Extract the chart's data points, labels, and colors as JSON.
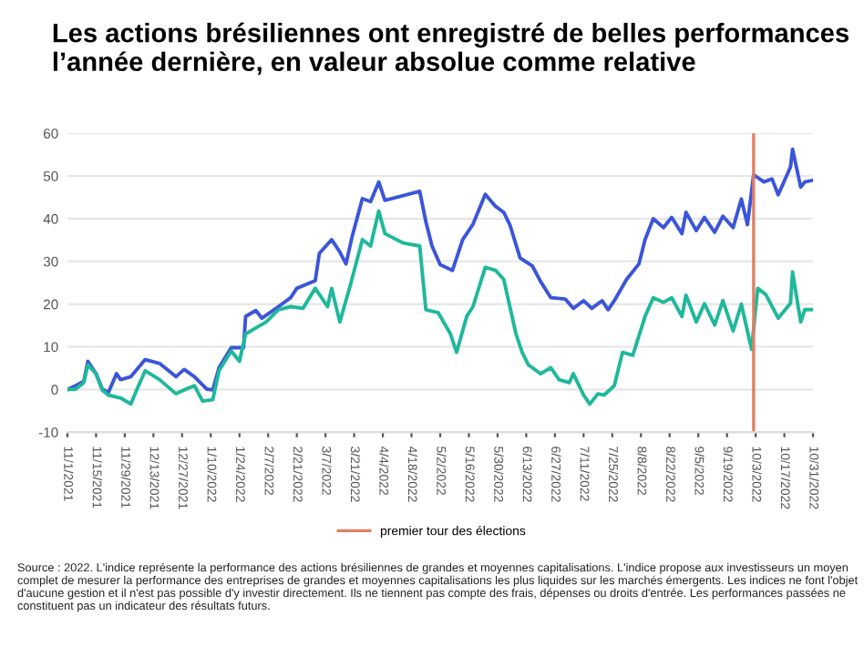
{
  "chart_data": {
    "type": "line",
    "title": "Les actions brésiliennes ont enregistré de belles performances l’année dernière, en valeur absolue comme relative",
    "series": [
      {
        "color": "#3b55d9",
        "x": [
          "2021-11-01",
          "2021-11-05",
          "2021-11-09",
          "2021-11-11",
          "2021-11-15",
          "2021-11-18",
          "2021-11-21",
          "2021-11-25",
          "2021-11-27",
          "2021-12-02",
          "2021-12-09",
          "2021-12-16",
          "2021-12-24",
          "2021-12-28",
          "2022-01-02",
          "2022-01-08",
          "2022-01-11",
          "2022-01-14",
          "2022-01-20",
          "2022-01-26",
          "2022-01-27",
          "2022-02-01",
          "2022-02-04",
          "2022-02-12",
          "2022-02-18",
          "2022-02-21",
          "2022-03-02",
          "2022-03-04",
          "2022-03-10",
          "2022-03-14",
          "2022-03-17",
          "2022-03-20",
          "2022-03-25",
          "2022-03-29",
          "2022-04-02",
          "2022-04-05",
          "2022-04-14",
          "2022-04-22",
          "2022-04-25",
          "2022-04-28",
          "2022-05-02",
          "2022-05-08",
          "2022-05-13",
          "2022-05-18",
          "2022-05-24",
          "2022-05-29",
          "2022-06-02",
          "2022-06-05",
          "2022-06-10",
          "2022-06-16",
          "2022-06-20",
          "2022-06-25",
          "2022-07-02",
          "2022-07-06",
          "2022-07-11",
          "2022-07-15",
          "2022-07-20",
          "2022-07-23",
          "2022-07-26",
          "2022-08-01",
          "2022-08-07",
          "2022-08-10",
          "2022-08-14",
          "2022-08-19",
          "2022-08-23",
          "2022-08-28",
          "2022-08-30",
          "2022-09-04",
          "2022-09-08",
          "2022-09-13",
          "2022-09-17",
          "2022-09-22",
          "2022-09-26",
          "2022-09-29",
          "2022-10-02",
          "2022-10-07",
          "2022-10-11",
          "2022-10-14",
          "2022-10-20",
          "2022-10-21",
          "2022-10-25",
          "2022-10-27",
          "2022-10-31"
        ],
        "values": [
          0,
          0.9,
          1.9,
          6.6,
          3.7,
          0.1,
          -0.7,
          3.7,
          2.3,
          3.0,
          7.0,
          6.1,
          3.0,
          4.7,
          3.0,
          0.1,
          -0.1,
          5.1,
          9.8,
          9.8,
          17.1,
          18.5,
          16.7,
          19.4,
          21.5,
          23.7,
          25.5,
          31.9,
          35.1,
          32.2,
          29.4,
          35.8,
          44.7,
          44.0,
          48.6,
          44.3,
          45.4,
          46.4,
          39.3,
          33.6,
          29.2,
          27.9,
          35.1,
          38.7,
          45.7,
          42.9,
          41.5,
          38.6,
          30.8,
          28.9,
          25.3,
          21.5,
          21.2,
          19.0,
          20.8,
          19.0,
          20.8,
          18.7,
          20.8,
          25.8,
          29.4,
          35.1,
          40.0,
          37.9,
          40.3,
          36.5,
          41.5,
          37.2,
          40.3,
          36.8,
          40.6,
          37.9,
          44.6,
          38.6,
          50.3,
          48.6,
          49.3,
          45.6,
          52.1,
          56.3,
          47.4,
          48.6,
          49.0
        ]
      },
      {
        "color": "#1fb89b",
        "x": [
          "2021-11-01",
          "2021-11-05",
          "2021-11-09",
          "2021-11-11",
          "2021-11-15",
          "2021-11-18",
          "2021-11-21",
          "2021-11-27",
          "2021-12-02",
          "2021-12-05",
          "2021-12-09",
          "2021-12-16",
          "2021-12-24",
          "2021-12-28",
          "2022-01-02",
          "2022-01-06",
          "2022-01-11",
          "2022-01-14",
          "2022-01-20",
          "2022-01-24",
          "2022-01-27",
          "2022-02-01",
          "2022-02-06",
          "2022-02-12",
          "2022-02-18",
          "2022-02-24",
          "2022-03-02",
          "2022-03-08",
          "2022-03-10",
          "2022-03-14",
          "2022-03-19",
          "2022-03-25",
          "2022-03-29",
          "2022-04-02",
          "2022-04-05",
          "2022-04-14",
          "2022-04-22",
          "2022-04-25",
          "2022-05-01",
          "2022-05-07",
          "2022-05-10",
          "2022-05-15",
          "2022-05-18",
          "2022-05-24",
          "2022-05-29",
          "2022-06-02",
          "2022-06-08",
          "2022-06-11",
          "2022-06-14",
          "2022-06-20",
          "2022-06-25",
          "2022-06-29",
          "2022-07-04",
          "2022-07-06",
          "2022-07-11",
          "2022-07-14",
          "2022-07-18",
          "2022-07-21",
          "2022-07-26",
          "2022-07-30",
          "2022-08-04",
          "2022-08-10",
          "2022-08-14",
          "2022-08-19",
          "2022-08-23",
          "2022-08-28",
          "2022-08-30",
          "2022-09-04",
          "2022-09-08",
          "2022-09-13",
          "2022-09-17",
          "2022-09-22",
          "2022-09-26",
          "2022-10-01",
          "2022-10-04",
          "2022-10-08",
          "2022-10-14",
          "2022-10-20",
          "2022-10-21",
          "2022-10-25",
          "2022-10-27",
          "2022-10-31"
        ],
        "values": [
          0,
          0.1,
          1.6,
          5.8,
          3.7,
          -0.1,
          -1.3,
          -2.0,
          -3.4,
          0.1,
          4.4,
          2.3,
          -1.0,
          -0.1,
          0.9,
          -2.7,
          -2.4,
          4.4,
          9.0,
          6.6,
          13.0,
          14.4,
          15.8,
          18.7,
          19.4,
          19.0,
          23.7,
          19.4,
          23.7,
          15.8,
          24.2,
          35.1,
          33.6,
          41.8,
          36.5,
          34.3,
          33.6,
          18.7,
          18.0,
          13.0,
          8.7,
          17.2,
          19.4,
          28.6,
          27.9,
          25.8,
          13.0,
          8.7,
          5.8,
          3.7,
          5.1,
          2.3,
          1.6,
          3.7,
          -1.3,
          -3.4,
          -1.0,
          -1.3,
          0.9,
          8.7,
          8.0,
          17.1,
          21.5,
          20.4,
          21.5,
          17.1,
          22.1,
          15.8,
          20.1,
          15.1,
          20.8,
          13.7,
          20.0,
          9.4,
          23.7,
          22.2,
          16.7,
          20.2,
          27.5,
          15.8,
          18.7,
          18.7
        ]
      }
    ],
    "xlim": [
      "2021-11-01",
      "2022-10-31"
    ],
    "xticks": [
      {
        "value": "2021-11-01",
        "label": "11/1/2021"
      },
      {
        "value": "2021-11-15",
        "label": "11/15/2021"
      },
      {
        "value": "2021-11-29",
        "label": "11/29/2021"
      },
      {
        "value": "2021-12-13",
        "label": "12/13/2021"
      },
      {
        "value": "2021-12-27",
        "label": "12/27/2021"
      },
      {
        "value": "2022-01-10",
        "label": "1/10/2022"
      },
      {
        "value": "2022-01-24",
        "label": "1/24/2022"
      },
      {
        "value": "2022-02-07",
        "label": "2/7/2022"
      },
      {
        "value": "2022-02-21",
        "label": "2/21/2022"
      },
      {
        "value": "2022-03-07",
        "label": "3/7/2022"
      },
      {
        "value": "2022-03-21",
        "label": "3/21/2022"
      },
      {
        "value": "2022-04-04",
        "label": "4/4/2022"
      },
      {
        "value": "2022-04-18",
        "label": "4/18/2022"
      },
      {
        "value": "2022-05-02",
        "label": "5/2/2022"
      },
      {
        "value": "2022-05-16",
        "label": "5/16/2022"
      },
      {
        "value": "2022-05-30",
        "label": "5/30/2022"
      },
      {
        "value": "2022-06-13",
        "label": "6/13/2022"
      },
      {
        "value": "2022-06-27",
        "label": "6/27/2022"
      },
      {
        "value": "2022-07-11",
        "label": "7/11/2022"
      },
      {
        "value": "2022-07-25",
        "label": "7/25/2022"
      },
      {
        "value": "2022-08-08",
        "label": "8/8/2022"
      },
      {
        "value": "2022-08-22",
        "label": "8/22/2022"
      },
      {
        "value": "2022-09-05",
        "label": "9/5/2022"
      },
      {
        "value": "2022-09-19",
        "label": "9/19/2022"
      },
      {
        "value": "2022-10-03",
        "label": "10/3/2022"
      },
      {
        "value": "2022-10-17",
        "label": "10/17/2022"
      },
      {
        "value": "2022-10-31",
        "label": "10/31/2022"
      }
    ],
    "ylim": [
      -10,
      60
    ],
    "yticks": [
      -10,
      0,
      10,
      20,
      30,
      40,
      50,
      60
    ],
    "grid": "y",
    "legend": "bottom",
    "ref_lines": [
      {
        "axis": "x",
        "value": "2022-10-02",
        "label": "premier tour des élections",
        "color": "#e07f62"
      }
    ],
    "annotations": [
      "Source : 2022. L'indice représente la performance des actions brésiliennes de grandes et moyennes capitalisations. L'indice propose aux investisseurs un moyen complet de mesurer la performance des entreprises de grandes et moyennes capitalisations les plus liquides sur les marchés émergents. Les indices ne font l'objet d'aucune gestion et il n'est pas possible d'y investir directement. Ils ne tiennent pas compte des frais, dépenses ou droits d'entrée. Les performances passées ne constituent pas un indicateur des résultats futurs."
    ]
  }
}
